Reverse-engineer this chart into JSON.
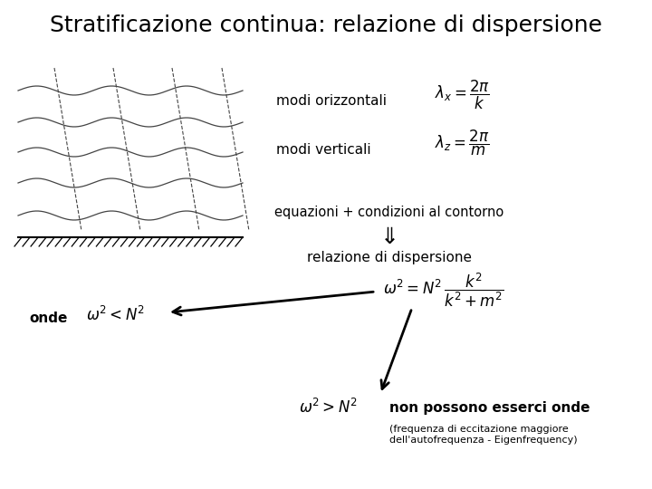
{
  "title": "Stratificazione continua: relazione di dispersione",
  "title_fontsize": 18,
  "bg_color": "#ffffff",
  "text_color": "#000000",
  "label_modi_orizzontali": "modi orizzontali",
  "label_modi_verticali": "modi verticali",
  "label_equazioni": "equazioni + condizioni al contorno",
  "label_relazione": "relazione di dispersione",
  "label_onde": "onde",
  "label_non_possono": "non possono esserci onde",
  "label_frequenza": "(frequenza di eccitazione maggiore\ndell'autofrequenza - Eigenfrequency)",
  "formula_lambda_x": "$\\lambda_x = \\dfrac{2\\pi}{k}$",
  "formula_lambda_z": "$\\lambda_z = \\dfrac{2\\pi}{m}$",
  "formula_disp": "$\\omega^2 = N^2\\,\\dfrac{k^2}{k^2 + m^2}$",
  "formula_onde": "$\\omega^2 < N^2$",
  "formula_non_possono": "$\\omega^2 > N^2$"
}
